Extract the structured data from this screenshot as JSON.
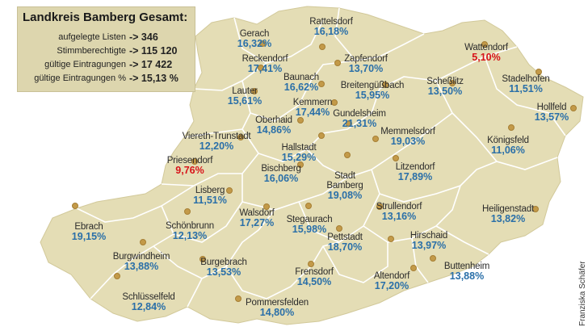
{
  "summary": {
    "title": "Landkreis Bamberg Gesamt:",
    "rows": [
      {
        "label": "aufgelegte Listen",
        "value": "-> 346"
      },
      {
        "label": "Stimmberechtigte",
        "value": "-> 115 120"
      },
      {
        "label": "gültige Eintragungen",
        "value": "-> 17 422"
      },
      {
        "label": "gültige Eintragungen %",
        "value": "-> 15,13 %"
      }
    ]
  },
  "credit": "Franziska Schäfer",
  "colors": {
    "land": "#e4ddb5",
    "border": "#ffffff",
    "marker": "#c39a49",
    "value": "#2a6fa8",
    "highlight": "#d7141a"
  },
  "places": [
    {
      "name": "Rattelsdorf",
      "value": "16,18%"
    },
    {
      "name": "Gerach",
      "value": "16,32%"
    },
    {
      "name": "Wattendorf",
      "value": "5,10%",
      "highlight": true
    },
    {
      "name": "Reckendorf",
      "value": "17,41%"
    },
    {
      "name": "Zapfendorf",
      "value": "13,70%"
    },
    {
      "name": "Stadelhofen",
      "value": "11,51%"
    },
    {
      "name": "Baunach",
      "value": "16,62%"
    },
    {
      "name": "Breitengüßbach",
      "value": "15,95%"
    },
    {
      "name": "Scheßlitz",
      "value": "13,50%"
    },
    {
      "name": "Lauter",
      "value": "15,61%"
    },
    {
      "name": "Kemmern",
      "value": "17,44%"
    },
    {
      "name": "Hollfeld",
      "value": "13,57%"
    },
    {
      "name": "Oberhaid",
      "value": "14,86%"
    },
    {
      "name": "Gundelsheim",
      "value": "21,31%"
    },
    {
      "name": "Memmelsdorf",
      "value": "19,03%"
    },
    {
      "name": "Viereth-Trunstadt",
      "value": "12,20%"
    },
    {
      "name": "Hallstadt",
      "value": "15,29%"
    },
    {
      "name": "Königsfeld",
      "value": "11,06%"
    },
    {
      "name": "Priesendorf",
      "value": "9,76%",
      "highlight": true
    },
    {
      "name": "Bischberg",
      "value": "16,06%"
    },
    {
      "name": "Stadt Bamberg",
      "value": "19,08%"
    },
    {
      "name": "Litzendorf",
      "value": "17,89%"
    },
    {
      "name": "Lisberg",
      "value": "11,51%"
    },
    {
      "name": "Walsdorf",
      "value": "17,27%"
    },
    {
      "name": "Strullendorf",
      "value": "13,16%"
    },
    {
      "name": "Heiligenstadt",
      "value": "13,82%"
    },
    {
      "name": "Ebrach",
      "value": "19,15%"
    },
    {
      "name": "Schönbrunn",
      "value": "12,13%"
    },
    {
      "name": "Stegaurach",
      "value": "15,98%"
    },
    {
      "name": "Hirschaid",
      "value": "13,97%"
    },
    {
      "name": "Pettstadt",
      "value": "18,70%"
    },
    {
      "name": "Burgwindheim",
      "value": "13,88%"
    },
    {
      "name": "Burgebrach",
      "value": "13,53%"
    },
    {
      "name": "Buttenheim",
      "value": "13,88%"
    },
    {
      "name": "Frensdorf",
      "value": "14,50%"
    },
    {
      "name": "Altendorf",
      "value": "17,20%"
    },
    {
      "name": "Schlüsselfeld",
      "value": "12,84%"
    },
    {
      "name": "Pommersfelden",
      "value": "14,80%"
    }
  ]
}
